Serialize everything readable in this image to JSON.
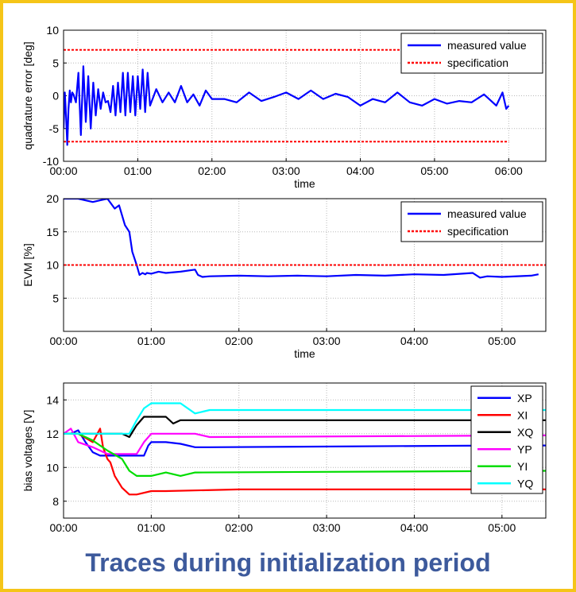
{
  "caption": "Traces during initialization period",
  "colors": {
    "frame": "#f5c518",
    "caption": "#3d5a9c",
    "grid": "#b8b8b8"
  },
  "chart_data": [
    {
      "type": "line",
      "ylabel": "quadrature error [deg]",
      "xlabel": "time",
      "xticks": [
        "00:00",
        "01:00",
        "02:00",
        "03:00",
        "04:00",
        "05:00",
        "06:00"
      ],
      "xlim": [
        0,
        390
      ],
      "ylim": [
        -10,
        10
      ],
      "yticks": [
        -10,
        -5,
        0,
        5,
        10
      ],
      "grid": true,
      "legend_position": "top-right",
      "series": [
        {
          "name": "measured value",
          "color": "#0000ff",
          "style": "solid",
          "x": [
            0,
            1,
            2,
            3,
            4,
            5,
            6,
            7,
            8,
            10,
            12,
            14,
            16,
            18,
            20,
            22,
            24,
            26,
            28,
            30,
            32,
            34,
            36,
            38,
            40,
            42,
            44,
            46,
            48,
            50,
            52,
            54,
            56,
            58,
            60,
            62,
            64,
            66,
            68,
            70,
            75,
            80,
            85,
            90,
            95,
            100,
            105,
            110,
            115,
            120,
            130,
            140,
            150,
            160,
            170,
            180,
            190,
            200,
            210,
            220,
            230,
            240,
            250,
            260,
            270,
            280,
            290,
            300,
            310,
            320,
            330,
            340,
            350,
            355,
            358,
            360
          ],
          "y": [
            -5,
            0.5,
            -3,
            -7.5,
            -2,
            0.8,
            -1,
            0.5,
            0.2,
            -1,
            3.5,
            -6,
            4.5,
            -4,
            3,
            -5,
            2,
            -3,
            1,
            -2,
            0.5,
            -1,
            -0.8,
            -2.5,
            1.5,
            -3,
            2,
            -2.5,
            3.5,
            -3,
            3.5,
            -2.5,
            3,
            -3,
            3,
            -2,
            4,
            -2.5,
            3.5,
            -1.5,
            1,
            -1,
            0.5,
            -1,
            1.5,
            -1,
            0.2,
            -1.5,
            0.8,
            -0.5,
            -0.5,
            -1,
            0.5,
            -0.8,
            -0.2,
            0.5,
            -0.5,
            0.8,
            -0.5,
            0.3,
            -0.2,
            -1.5,
            -0.5,
            -1,
            0.5,
            -1,
            -1.5,
            -0.5,
            -1.2,
            -0.8,
            -1,
            0.2,
            -1.5,
            0.5,
            -2,
            -1.5
          ]
        },
        {
          "name": "specification",
          "color": "#ff0000",
          "style": "dashed",
          "x": [
            0,
            360
          ],
          "y": [
            7,
            7
          ]
        },
        {
          "name": "specification",
          "color": "#ff0000",
          "style": "dashed",
          "x": [
            0,
            360
          ],
          "y": [
            -7,
            -7
          ],
          "legend": false
        }
      ]
    },
    {
      "type": "line",
      "ylabel": "EVM [%]",
      "xlabel": "time",
      "xticks": [
        "00:00",
        "01:00",
        "02:00",
        "03:00",
        "04:00",
        "05:00"
      ],
      "xlim": [
        0,
        330
      ],
      "ylim": [
        0,
        20
      ],
      "yticks": [
        5,
        10,
        15,
        20
      ],
      "grid": true,
      "legend_position": "top-right",
      "series": [
        {
          "name": "measured value",
          "color": "#0000ff",
          "style": "solid",
          "x": [
            0,
            10,
            20,
            30,
            35,
            38,
            40,
            42,
            45,
            47,
            50,
            52,
            54,
            56,
            57,
            60,
            65,
            70,
            80,
            90,
            92,
            95,
            100,
            120,
            140,
            160,
            180,
            200,
            220,
            240,
            260,
            280,
            285,
            290,
            300,
            320,
            325
          ],
          "y": [
            20,
            20,
            19.5,
            20,
            18.5,
            19,
            17.5,
            16,
            15,
            12,
            10,
            8.5,
            8.8,
            8.6,
            8.8,
            8.7,
            9,
            8.8,
            9,
            9.3,
            8.5,
            8.2,
            8.3,
            8.4,
            8.3,
            8.4,
            8.3,
            8.5,
            8.4,
            8.6,
            8.5,
            8.8,
            8.1,
            8.3,
            8.2,
            8.4,
            8.6
          ]
        },
        {
          "name": "specification",
          "color": "#ff0000",
          "style": "dashed",
          "x": [
            0,
            330
          ],
          "y": [
            10,
            10
          ]
        }
      ]
    },
    {
      "type": "line",
      "ylabel": "bias voltages [V]",
      "xlabel": "",
      "xticks": [
        "00:00",
        "01:00",
        "02:00",
        "03:00",
        "04:00",
        "05:00"
      ],
      "xlim": [
        0,
        330
      ],
      "ylim": [
        7,
        15
      ],
      "yticks": [
        8,
        10,
        12,
        14
      ],
      "grid": true,
      "legend_position": "top-right",
      "series": [
        {
          "name": "XP",
          "color": "#0000ff",
          "x": [
            0,
            5,
            10,
            15,
            20,
            25,
            40,
            50,
            55,
            58,
            60,
            62,
            65,
            70,
            80,
            90,
            100,
            300,
            330
          ],
          "y": [
            12,
            12,
            12.2,
            11.5,
            10.9,
            10.7,
            10.7,
            10.7,
            10.7,
            11.3,
            11.5,
            11.5,
            11.5,
            11.5,
            11.4,
            11.2,
            11.2,
            11.3,
            11.3
          ]
        },
        {
          "name": "XI",
          "color": "#ff0000",
          "x": [
            0,
            10,
            20,
            25,
            27,
            30,
            32,
            35,
            40,
            45,
            50,
            60,
            70,
            120,
            300,
            330
          ],
          "y": [
            12,
            12,
            11.5,
            12.3,
            11.2,
            10.5,
            10.3,
            9.5,
            8.8,
            8.4,
            8.4,
            8.6,
            8.6,
            8.7,
            8.7,
            8.7
          ],
          "note": ""
        },
        {
          "name": "XQ",
          "color": "#000000",
          "x": [
            0,
            20,
            40,
            45,
            50,
            55,
            60,
            70,
            75,
            80,
            100,
            330
          ],
          "y": [
            12,
            12,
            12,
            11.8,
            12.5,
            13,
            13,
            13,
            12.6,
            12.8,
            12.8,
            12.8
          ]
        },
        {
          "name": "YP",
          "color": "#ff00ff",
          "x": [
            0,
            5,
            10,
            20,
            30,
            40,
            50,
            55,
            60,
            70,
            90,
            100,
            330
          ],
          "y": [
            12,
            12.3,
            11.5,
            11.2,
            10.8,
            10.8,
            10.8,
            11.5,
            12,
            12,
            12,
            11.8,
            11.9
          ]
        },
        {
          "name": "YI",
          "color": "#00dd00",
          "x": [
            0,
            10,
            20,
            30,
            40,
            45,
            50,
            60,
            70,
            80,
            90,
            330
          ],
          "y": [
            12,
            12,
            11.6,
            11,
            10.5,
            9.8,
            9.5,
            9.5,
            9.7,
            9.5,
            9.7,
            9.8
          ]
        },
        {
          "name": "YQ",
          "color": "#00ffff",
          "x": [
            0,
            30,
            45,
            50,
            55,
            60,
            80,
            90,
            100,
            330
          ],
          "y": [
            12,
            12,
            12,
            12.8,
            13.5,
            13.8,
            13.8,
            13.2,
            13.4,
            13.4
          ]
        }
      ]
    }
  ]
}
